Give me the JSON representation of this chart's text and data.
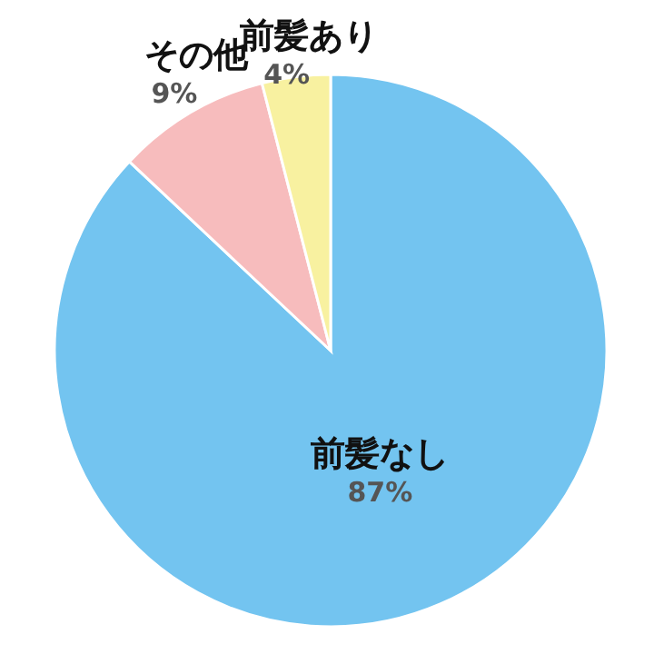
{
  "chart_data": {
    "type": "pie",
    "categories": [
      "前髪なし",
      "その他",
      "前髪あり"
    ],
    "values": [
      87,
      9,
      4
    ],
    "colors": [
      "#73c4f0",
      "#f7bcbd",
      "#f8f1a0"
    ],
    "value_labels": [
      "87%",
      "9%",
      "4%"
    ]
  }
}
